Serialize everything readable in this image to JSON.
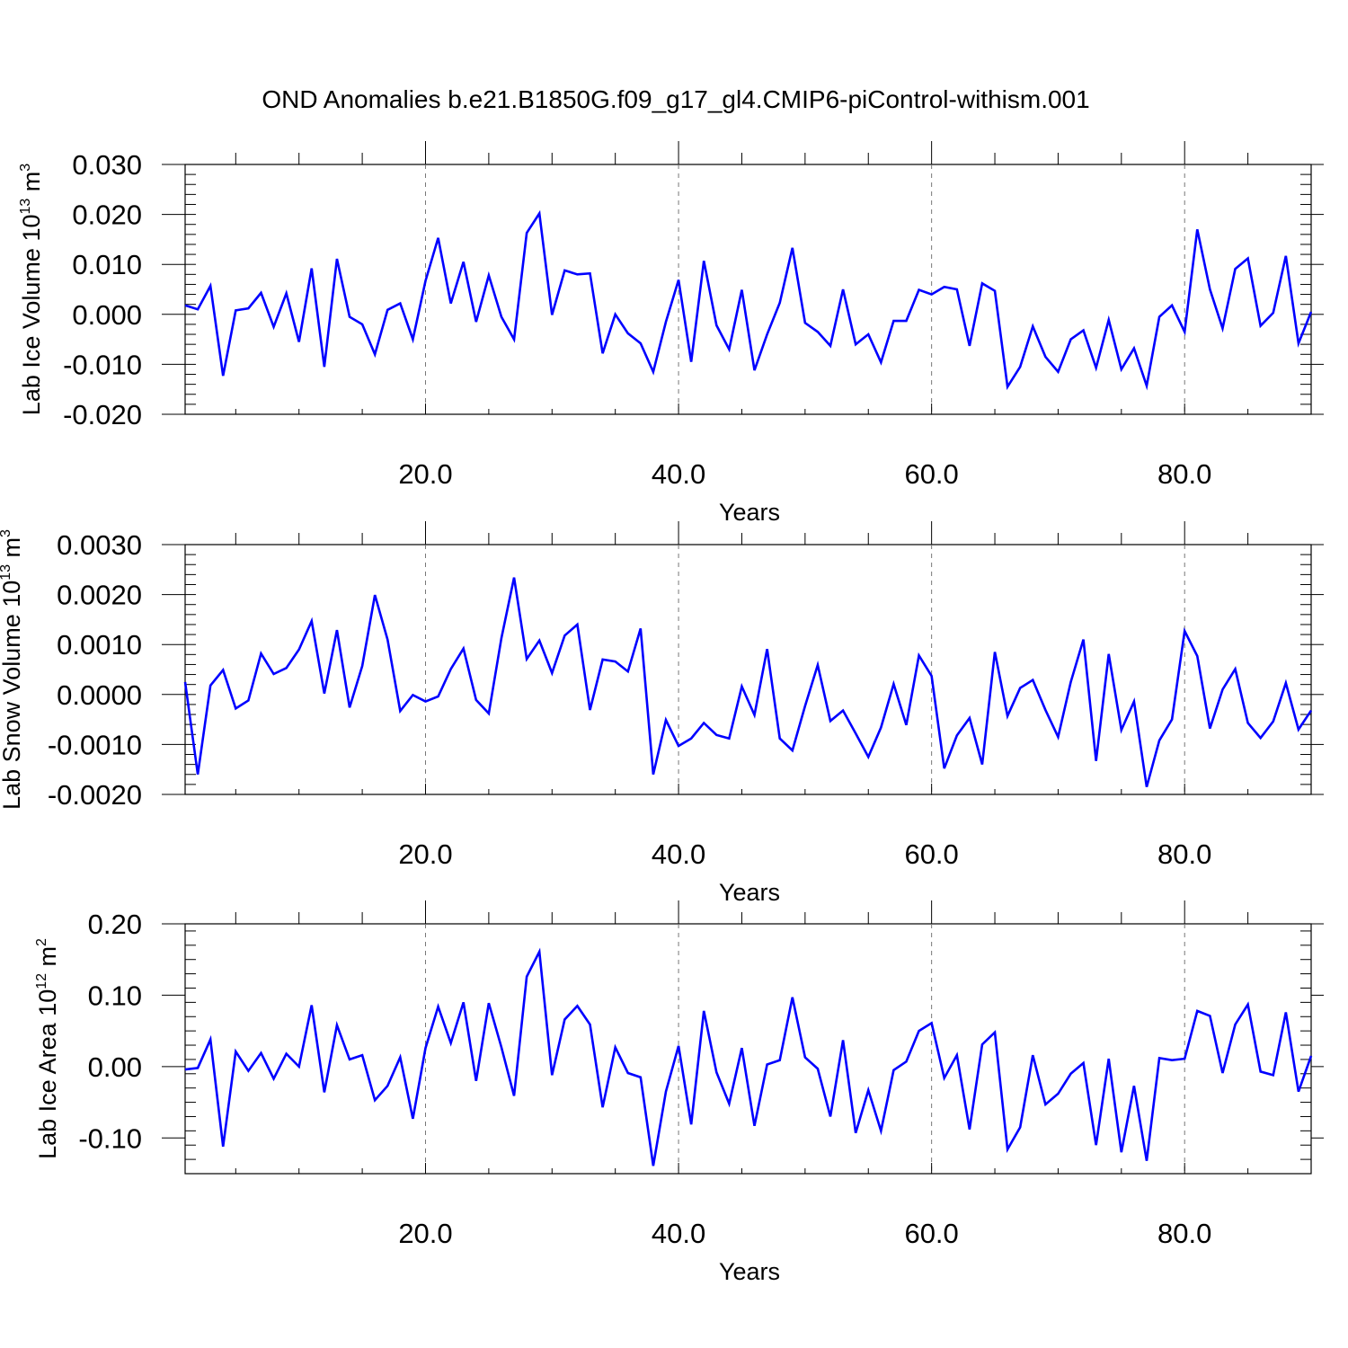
{
  "title": "OND Anomalies b.e21.B1850G.f09_g17_gl4.CMIP6-piControl-withism.001",
  "line_color": "#0000ff",
  "chart_data": [
    {
      "type": "line",
      "ylabel_main": "Lab Ice Volume 10",
      "ylabel_exp": "13",
      "ylabel_unit": " m",
      "ylabel_unit_exp": "3",
      "xlabel": "Years",
      "xlim": [
        1,
        90
      ],
      "ylim": [
        -0.02,
        0.03
      ],
      "xticks": [
        20,
        40,
        60,
        80
      ],
      "xtick_labels": [
        "20.0",
        "40.0",
        "60.0",
        "80.0"
      ],
      "yticks": [
        -0.02,
        -0.01,
        0.0,
        0.01,
        0.02,
        0.03
      ],
      "ytick_labels": [
        "-0.020",
        "-0.010",
        "0.000",
        "0.010",
        "0.020",
        "0.030"
      ],
      "x_start": 1,
      "values": [
        0.0018,
        0.001,
        0.0057,
        -0.0123,
        0.0008,
        0.0012,
        0.0043,
        -0.0025,
        0.0042,
        -0.0055,
        0.0092,
        -0.0105,
        0.0111,
        -0.0005,
        -0.002,
        -0.008,
        0.0009,
        0.0022,
        -0.005,
        0.0067,
        0.0153,
        0.0022,
        0.0105,
        -0.0015,
        0.0078,
        -0.0005,
        -0.005,
        0.0163,
        0.0202,
        -0.0001,
        0.0088,
        0.008,
        0.0082,
        -0.0078,
        0.0,
        -0.0038,
        -0.0058,
        -0.0115,
        -0.0015,
        0.0069,
        -0.0095,
        0.0107,
        -0.0022,
        -0.007,
        0.0049,
        -0.0112,
        -0.004,
        0.0023,
        0.0133,
        -0.0017,
        -0.0035,
        -0.0063,
        0.005,
        -0.006,
        -0.004,
        -0.0096,
        -0.0013,
        -0.0013,
        0.0049,
        0.004,
        0.0055,
        0.005,
        -0.0063,
        0.0062,
        0.0047,
        -0.0145,
        -0.0105,
        -0.0024,
        -0.0085,
        -0.0115,
        -0.005,
        -0.0032,
        -0.0107,
        -0.0011,
        -0.011,
        -0.0068,
        -0.0143,
        -0.0005,
        0.0018,
        -0.0035,
        0.017,
        0.005,
        -0.0028,
        0.0091,
        0.0112,
        -0.0023,
        0.0003,
        0.0117,
        -0.0058,
        0.0005
      ]
    },
    {
      "type": "line",
      "ylabel_main": "Lab Snow Volume 10",
      "ylabel_exp": "13",
      "ylabel_unit": " m",
      "ylabel_unit_exp": "3",
      "xlabel": "Years",
      "xlim": [
        1,
        90
      ],
      "ylim": [
        -0.002,
        0.003
      ],
      "xticks": [
        20,
        40,
        60,
        80
      ],
      "xtick_labels": [
        "20.0",
        "40.0",
        "60.0",
        "80.0"
      ],
      "yticks": [
        -0.002,
        -0.001,
        0.0,
        0.001,
        0.002,
        0.003
      ],
      "ytick_labels": [
        "-0.0020",
        "-0.0010",
        "0.0000",
        "0.0010",
        "0.0020",
        "0.0030"
      ],
      "x_start": 1,
      "values": [
        0.00025,
        -0.0016,
        0.00018,
        0.00049,
        -0.00028,
        -0.00012,
        0.00082,
        0.00041,
        0.00053,
        0.0009,
        0.00147,
        2e-05,
        0.00129,
        -0.00026,
        0.00057,
        0.00199,
        0.0011,
        -0.00033,
        -1e-05,
        -0.00014,
        -4e-05,
        0.00051,
        0.00092,
        -0.00011,
        -0.00038,
        0.00113,
        0.00234,
        0.00071,
        0.00108,
        0.00043,
        0.00118,
        0.0014,
        -0.00031,
        0.0007,
        0.00066,
        0.00046,
        0.00132,
        -0.0016,
        -0.00051,
        -0.00103,
        -0.00088,
        -0.00057,
        -0.00081,
        -0.00088,
        0.00016,
        -0.00041,
        0.00091,
        -0.00088,
        -0.00112,
        -0.00023,
        0.00059,
        -0.00053,
        -0.00032,
        -0.00078,
        -0.00125,
        -0.00066,
        0.00021,
        -0.00061,
        0.00078,
        0.00037,
        -0.00148,
        -0.00082,
        -0.00047,
        -0.0014,
        0.00085,
        -0.00043,
        0.00013,
        0.00029,
        -0.00031,
        -0.00085,
        0.00025,
        0.0011,
        -0.00133,
        0.00081,
        -0.00071,
        -0.00014,
        -0.00185,
        -0.00092,
        -0.0005,
        0.00127,
        0.00077,
        -0.00068,
        0.0001,
        0.00051,
        -0.00057,
        -0.00087,
        -0.00054,
        0.00023,
        -0.0007,
        -0.00032
      ]
    },
    {
      "type": "line",
      "ylabel_main": "Lab Ice Area 10",
      "ylabel_exp": "12",
      "ylabel_unit": " m",
      "ylabel_unit_exp": "2",
      "xlabel": "Years",
      "xlim": [
        1,
        90
      ],
      "ylim": [
        -0.15,
        0.2
      ],
      "xticks": [
        20,
        40,
        60,
        80
      ],
      "xtick_labels": [
        "20.0",
        "40.0",
        "60.0",
        "80.0"
      ],
      "yticks": [
        -0.1,
        0.0,
        0.1,
        0.2
      ],
      "ytick_labels": [
        "-0.10",
        "0.00",
        "0.10",
        "0.20"
      ],
      "x_start": 1,
      "values": [
        -0.004,
        -0.002,
        0.038,
        -0.112,
        0.021,
        -0.006,
        0.019,
        -0.017,
        0.018,
        0.0,
        0.086,
        -0.036,
        0.058,
        0.01,
        0.016,
        -0.047,
        -0.027,
        0.013,
        -0.073,
        0.026,
        0.084,
        0.033,
        0.09,
        -0.02,
        0.089,
        0.027,
        -0.041,
        0.126,
        0.161,
        -0.012,
        0.066,
        0.085,
        0.059,
        -0.057,
        0.027,
        -0.009,
        -0.015,
        -0.139,
        -0.035,
        0.029,
        -0.081,
        0.078,
        -0.008,
        -0.052,
        0.026,
        -0.083,
        0.003,
        0.009,
        0.097,
        0.013,
        -0.003,
        -0.07,
        0.037,
        -0.093,
        -0.033,
        -0.09,
        -0.005,
        0.007,
        0.05,
        0.061,
        -0.016,
        0.016,
        -0.088,
        0.031,
        0.048,
        -0.116,
        -0.085,
        0.016,
        -0.053,
        -0.038,
        -0.01,
        0.005,
        -0.11,
        0.011,
        -0.12,
        -0.027,
        -0.132,
        0.012,
        0.009,
        0.011,
        0.078,
        0.071,
        -0.009,
        0.059,
        0.087,
        -0.007,
        -0.012,
        0.076,
        -0.035,
        0.015
      ]
    }
  ]
}
